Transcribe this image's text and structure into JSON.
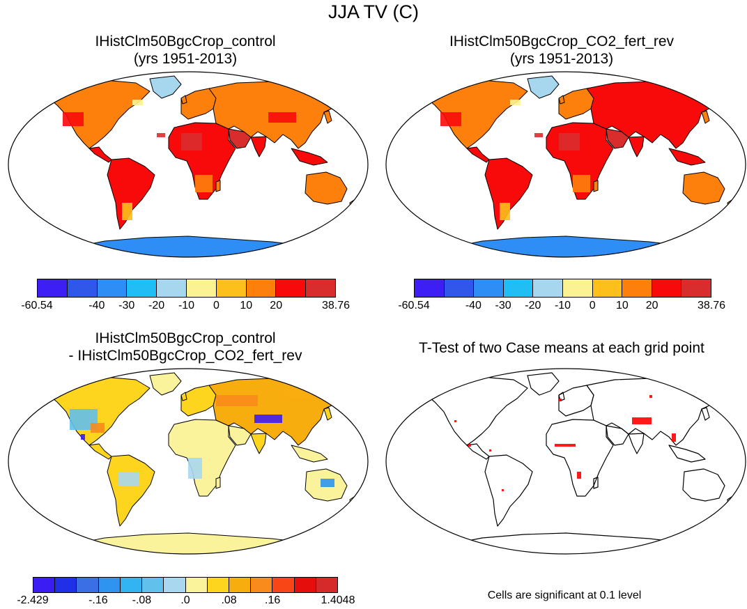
{
  "title": "JJA TV (C)",
  "panels": [
    {
      "id": "control",
      "title_line1": "IHistClm50BgcCrop_control",
      "title_line2": "(yrs 1951-2013)"
    },
    {
      "id": "co2",
      "title_line1": "IHistClm50BgcCrop_CO2_fert_rev",
      "title_line2": "(yrs 1951-2013)"
    },
    {
      "id": "diff",
      "title_line1": "IHistClm50BgcCrop_control",
      "title_line2": "- IHistClm50BgcCrop_CO2_fert_rev"
    },
    {
      "id": "ttest",
      "title_line1": "T-Test of two Case means at each grid point"
    }
  ],
  "colorbar_abs": {
    "colors": [
      "#3d1ff5",
      "#2f58ea",
      "#2f8ef5",
      "#21bdf5",
      "#a6d7ee",
      "#fbf391",
      "#fdbf1c",
      "#fd800d",
      "#f80a0a",
      "#d92c2c"
    ],
    "labels": [
      "-60.54",
      "-40",
      "-30",
      "-20",
      "-10",
      "0",
      "10",
      "20",
      "38.76"
    ]
  },
  "colorbar_diff": {
    "colors": [
      "#3b1df3",
      "#2030e8",
      "#3b6fe6",
      "#2f93f0",
      "#31b4f1",
      "#62c0ec",
      "#a9d7ef",
      "#fbf29c",
      "#fed51e",
      "#f8ad0f",
      "#f88b1b",
      "#f94616",
      "#e60d0d",
      "#d42a2a"
    ],
    "labels": [
      "-2.429",
      "-.16",
      "-.08",
      ".0",
      ".08",
      ".16",
      "1.4048"
    ]
  },
  "ttest_note": "Cells are significant at 0.1 level",
  "colors": {
    "land_hot": "#f00c0c",
    "land_warm": "#fd800d",
    "desert": "#d92c2c",
    "antarctica_abs": "#2f8ef5",
    "diff_base": "#fbf29c",
    "diff_positive": "#fed51e",
    "diff_strong": "#f88b1b",
    "diff_negative": "#3b1df3",
    "significant_cells": "#ff0000",
    "coastline": "#000000"
  }
}
